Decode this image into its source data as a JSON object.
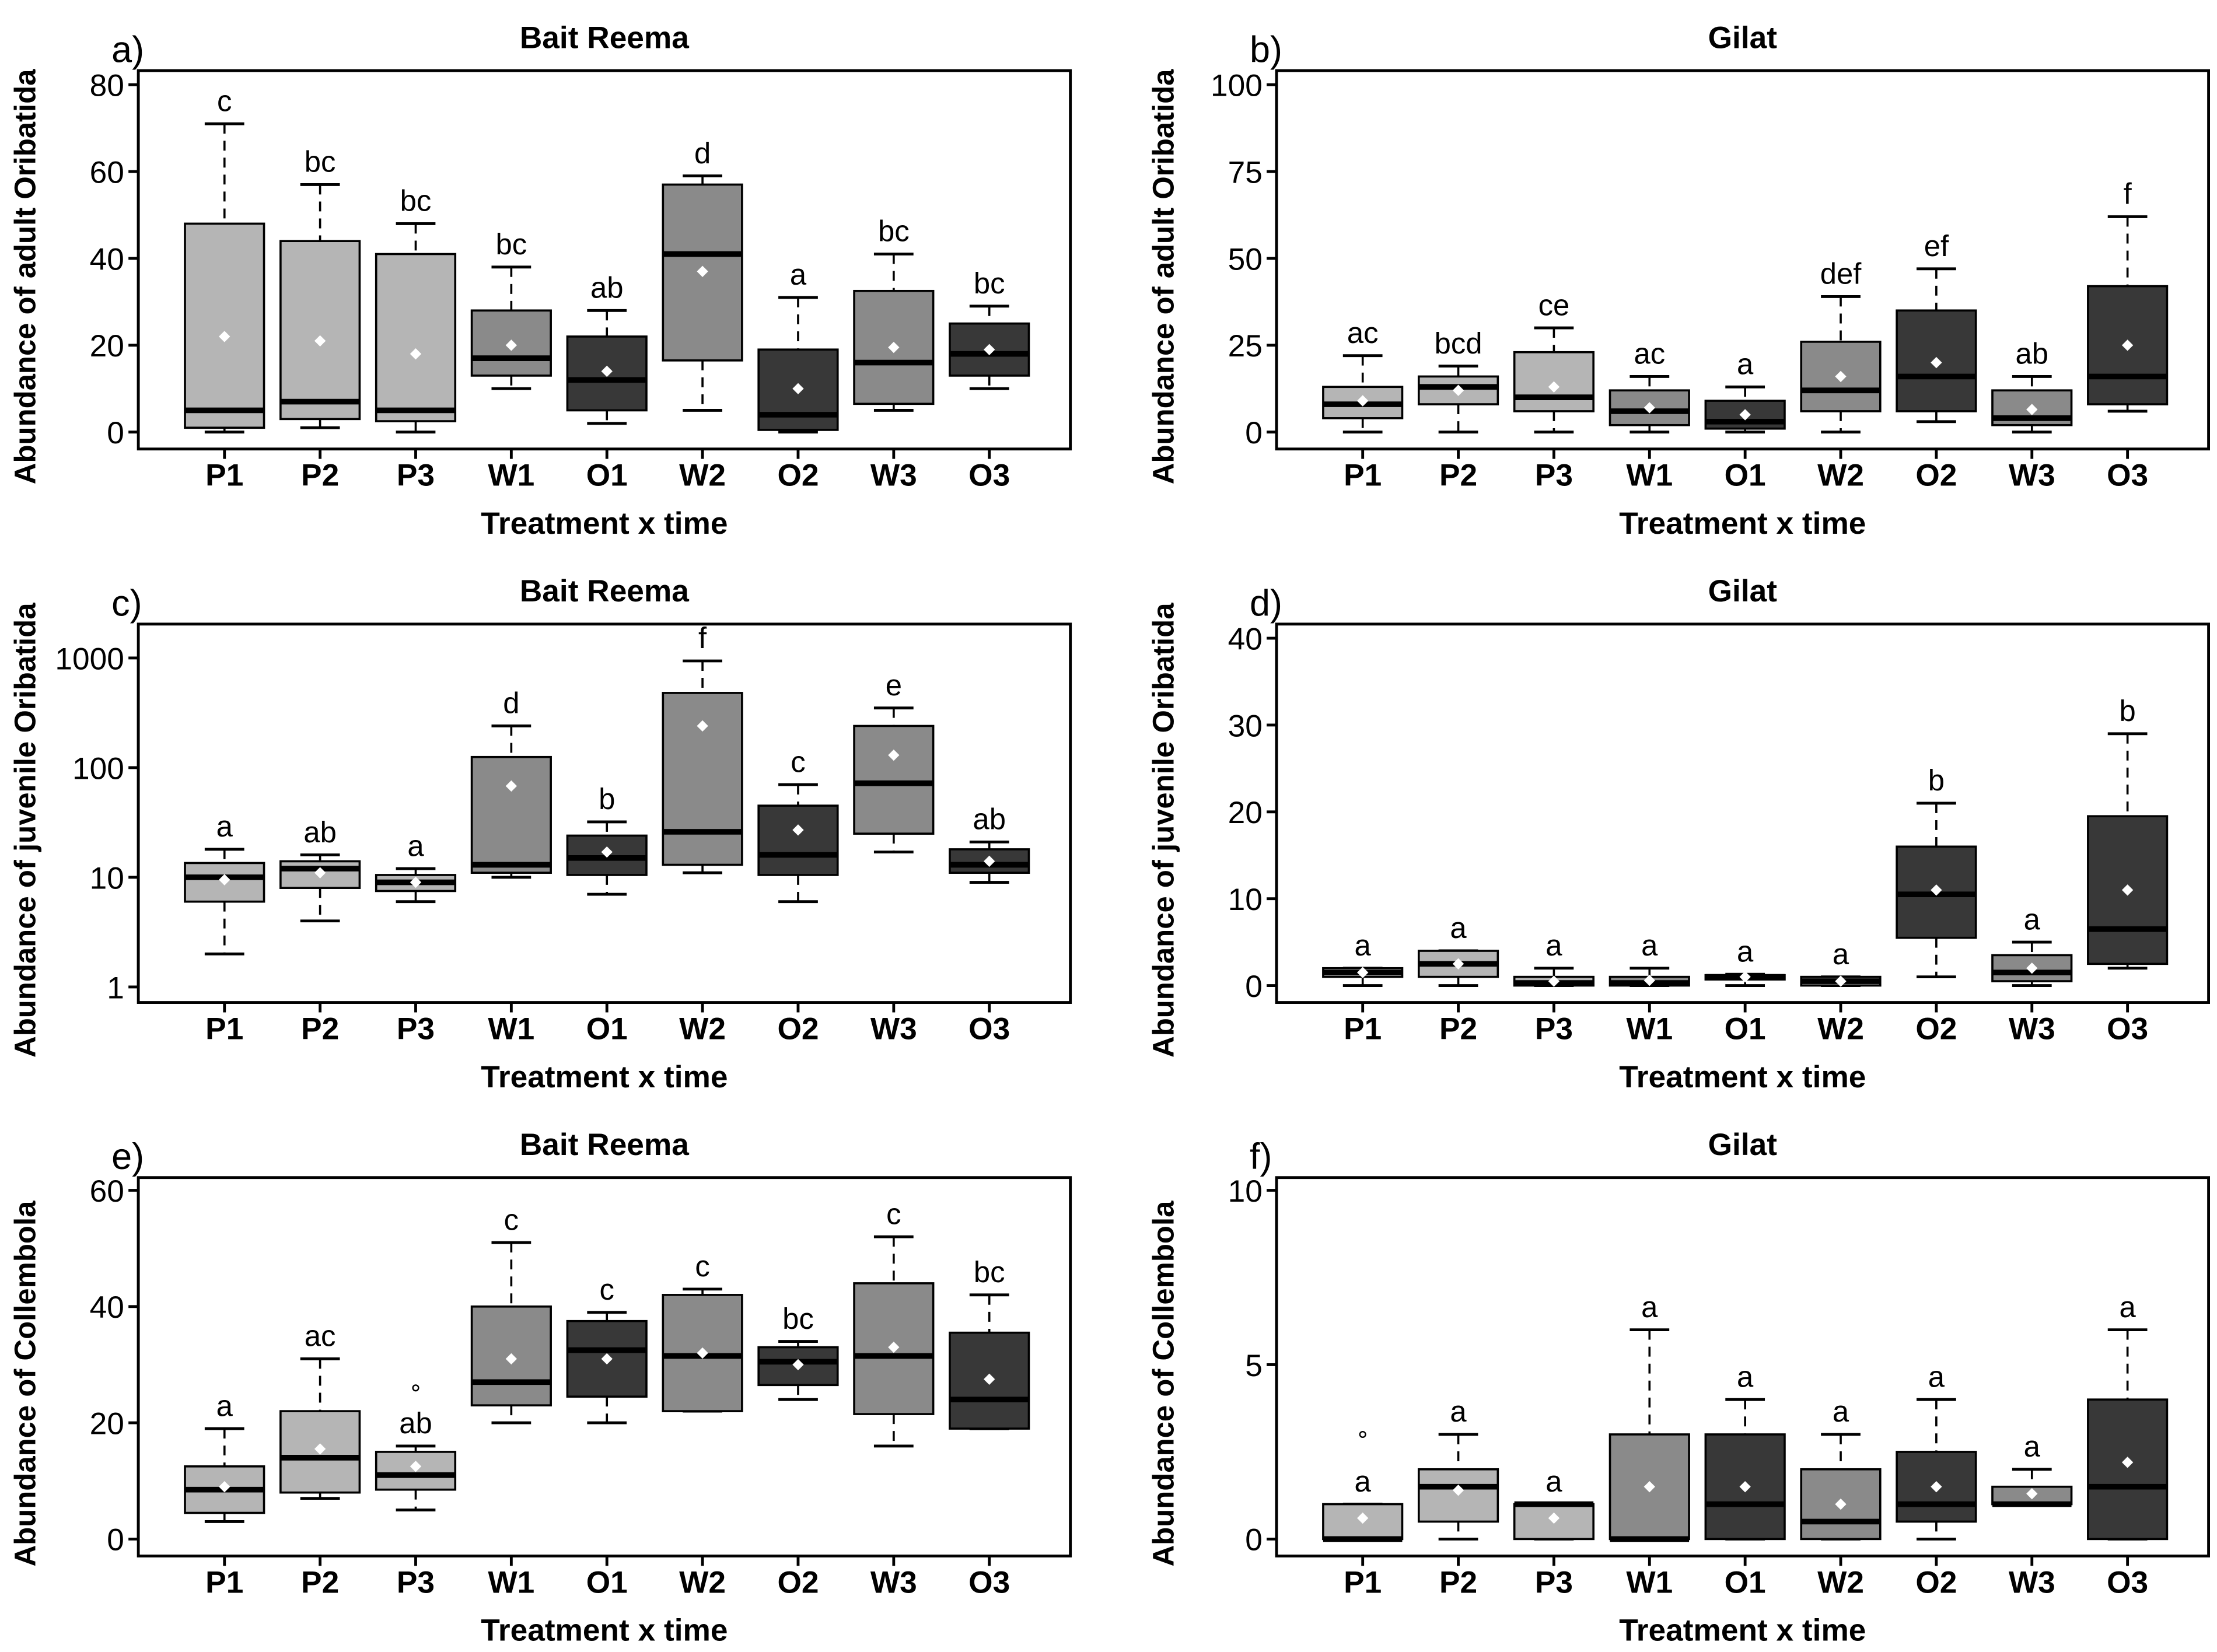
{
  "colors": {
    "P": "#b5b5b5",
    "W": "#8a8a8a",
    "O": "#383838",
    "mean_marker": "#ffffff"
  },
  "chart_data": [
    {
      "type": "box",
      "panel_label": "a)",
      "title": "Bait Reema",
      "xlabel": "Treatment x time",
      "ylabel": "Abundance of adult Oribatida",
      "scale": "linear",
      "ylim": [
        0,
        80
      ],
      "yticks": [
        0,
        20,
        40,
        60,
        80
      ],
      "categories": [
        "P1",
        "P2",
        "P3",
        "W1",
        "O1",
        "W2",
        "O2",
        "W3",
        "O3"
      ],
      "boxes": [
        {
          "lo": 0,
          "q1": 1,
          "med": 5,
          "q3": 48,
          "hi": 71,
          "mean": 22,
          "letter": "c"
        },
        {
          "lo": 1,
          "q1": 3,
          "med": 7,
          "q3": 44,
          "hi": 57,
          "mean": 21,
          "letter": "bc"
        },
        {
          "lo": 0,
          "q1": 2.5,
          "med": 5,
          "q3": 41,
          "hi": 48,
          "mean": 18,
          "letter": "bc"
        },
        {
          "lo": 10,
          "q1": 13,
          "med": 17,
          "q3": 28,
          "hi": 38,
          "mean": 20,
          "letter": "bc"
        },
        {
          "lo": 2,
          "q1": 5,
          "med": 12,
          "q3": 22,
          "hi": 28,
          "mean": 14,
          "letter": "ab"
        },
        {
          "lo": 5,
          "q1": 16.5,
          "med": 41,
          "q3": 57,
          "hi": 59,
          "mean": 37,
          "letter": "d"
        },
        {
          "lo": 0,
          "q1": 0.5,
          "med": 4,
          "q3": 19,
          "hi": 31,
          "mean": 10,
          "letter": "a"
        },
        {
          "lo": 5,
          "q1": 6.5,
          "med": 16,
          "q3": 32.5,
          "hi": 41,
          "mean": 19.5,
          "letter": "bc"
        },
        {
          "lo": 10,
          "q1": 13,
          "med": 18,
          "q3": 25,
          "hi": 29,
          "mean": 19,
          "letter": "bc"
        }
      ]
    },
    {
      "type": "box",
      "panel_label": "b)",
      "title": "Gilat",
      "xlabel": "Treatment x time",
      "ylabel": "Abundance of adult Oribatida",
      "scale": "linear",
      "ylim": [
        0,
        100
      ],
      "yticks": [
        0,
        25,
        50,
        75,
        100
      ],
      "categories": [
        "P1",
        "P2",
        "P3",
        "W1",
        "O1",
        "W2",
        "O2",
        "W3",
        "O3"
      ],
      "boxes": [
        {
          "lo": 0,
          "q1": 4,
          "med": 8,
          "q3": 13,
          "hi": 22,
          "mean": 9,
          "letter": "ac"
        },
        {
          "lo": 0,
          "q1": 8,
          "med": 13,
          "q3": 16,
          "hi": 19,
          "mean": 12,
          "letter": "bcd"
        },
        {
          "lo": 0,
          "q1": 6,
          "med": 10,
          "q3": 23,
          "hi": 30,
          "mean": 13,
          "letter": "ce"
        },
        {
          "lo": 0,
          "q1": 2,
          "med": 6,
          "q3": 12,
          "hi": 16,
          "mean": 7,
          "letter": "ac"
        },
        {
          "lo": 0,
          "q1": 1,
          "med": 3,
          "q3": 9,
          "hi": 13,
          "mean": 5,
          "letter": "a"
        },
        {
          "lo": 0,
          "q1": 6,
          "med": 12,
          "q3": 26,
          "hi": 39,
          "mean": 16,
          "letter": "def"
        },
        {
          "lo": 3,
          "q1": 6,
          "med": 16,
          "q3": 35,
          "hi": 47,
          "mean": 20,
          "letter": "ef"
        },
        {
          "lo": 0,
          "q1": 2,
          "med": 4,
          "q3": 12,
          "hi": 16,
          "mean": 6.5,
          "letter": "ab"
        },
        {
          "lo": 6,
          "q1": 8,
          "med": 16,
          "q3": 42,
          "hi": 62,
          "mean": 25,
          "letter": "f"
        }
      ]
    },
    {
      "type": "box",
      "panel_label": "c)",
      "title": "Bait Reema",
      "xlabel": "Treatment x time",
      "ylabel": "Abundance of juvenile Oribatida",
      "scale": "log",
      "ylim": [
        1,
        1000
      ],
      "yticks": [
        1,
        10,
        100,
        1000
      ],
      "categories": [
        "P1",
        "P2",
        "P3",
        "W1",
        "O1",
        "W2",
        "O2",
        "W3",
        "O3"
      ],
      "boxes": [
        {
          "lo": 2,
          "q1": 6,
          "med": 10,
          "q3": 13.5,
          "hi": 18,
          "mean": 9.5,
          "letter": "a"
        },
        {
          "lo": 4,
          "q1": 8,
          "med": 12,
          "q3": 14,
          "hi": 16,
          "mean": 11,
          "letter": "ab"
        },
        {
          "lo": 6,
          "q1": 7.5,
          "med": 9,
          "q3": 10.5,
          "hi": 12,
          "mean": 9,
          "letter": "a"
        },
        {
          "lo": 10,
          "q1": 11,
          "med": 13,
          "q3": 125,
          "hi": 240,
          "mean": 68,
          "letter": "d"
        },
        {
          "lo": 7,
          "q1": 10.5,
          "med": 15,
          "q3": 24,
          "hi": 32,
          "mean": 17,
          "letter": "b"
        },
        {
          "lo": 11,
          "q1": 13,
          "med": 26,
          "q3": 480,
          "hi": 940,
          "mean": 240,
          "letter": "f"
        },
        {
          "lo": 6,
          "q1": 10.5,
          "med": 16,
          "q3": 45,
          "hi": 70,
          "mean": 27,
          "letter": "c"
        },
        {
          "lo": 17,
          "q1": 25,
          "med": 72,
          "q3": 240,
          "hi": 350,
          "mean": 130,
          "letter": "e"
        },
        {
          "lo": 9,
          "q1": 11,
          "med": 13,
          "q3": 18,
          "hi": 21,
          "mean": 14,
          "letter": "ab"
        }
      ]
    },
    {
      "type": "box",
      "panel_label": "d)",
      "title": "Gilat",
      "xlabel": "Treatment x time",
      "ylabel": "Abundance of juvenile Oribatida",
      "scale": "linear",
      "ylim": [
        0,
        40
      ],
      "yticks": [
        0,
        10,
        20,
        30,
        40
      ],
      "categories": [
        "P1",
        "P2",
        "P3",
        "W1",
        "O1",
        "W2",
        "O2",
        "W3",
        "O3"
      ],
      "boxes": [
        {
          "lo": 0,
          "q1": 1,
          "med": 1.5,
          "q3": 2,
          "hi": 2,
          "mean": 1.5,
          "letter": "a"
        },
        {
          "lo": 0,
          "q1": 1,
          "med": 2.5,
          "q3": 4,
          "hi": 4,
          "mean": 2.5,
          "letter": "a"
        },
        {
          "lo": 0,
          "q1": 0,
          "med": 0.3,
          "q3": 1,
          "hi": 2,
          "mean": 0.5,
          "letter": "a"
        },
        {
          "lo": 0,
          "q1": 0,
          "med": 0.3,
          "q3": 1,
          "hi": 2,
          "mean": 0.6,
          "letter": "a"
        },
        {
          "lo": 0,
          "q1": 0.7,
          "med": 1,
          "q3": 1.2,
          "hi": 1.3,
          "mean": 1,
          "letter": "a"
        },
        {
          "lo": 0,
          "q1": 0,
          "med": 0.5,
          "q3": 1,
          "hi": 1,
          "mean": 0.5,
          "letter": "a"
        },
        {
          "lo": 1,
          "q1": 5.5,
          "med": 10.5,
          "q3": 16,
          "hi": 21,
          "mean": 11,
          "letter": "b"
        },
        {
          "lo": 0,
          "q1": 0.5,
          "med": 1.5,
          "q3": 3.5,
          "hi": 5,
          "mean": 2,
          "letter": "a"
        },
        {
          "lo": 2,
          "q1": 2.5,
          "med": 6.5,
          "q3": 19.5,
          "hi": 29,
          "mean": 11,
          "letter": "b"
        }
      ]
    },
    {
      "type": "box",
      "panel_label": "e)",
      "title": "Bait Reema",
      "xlabel": "Treatment x time",
      "ylabel": "Abundance of Collembola",
      "scale": "linear",
      "ylim": [
        0,
        60
      ],
      "yticks": [
        0,
        20,
        40,
        60
      ],
      "categories": [
        "P1",
        "P2",
        "P3",
        "W1",
        "O1",
        "W2",
        "O2",
        "W3",
        "O3"
      ],
      "boxes": [
        {
          "lo": 3,
          "q1": 4.5,
          "med": 8.5,
          "q3": 12.5,
          "hi": 19,
          "mean": 9,
          "letter": "a"
        },
        {
          "lo": 7,
          "q1": 8,
          "med": 14,
          "q3": 22,
          "hi": 31,
          "mean": 15.5,
          "letter": "ac"
        },
        {
          "lo": 5,
          "q1": 8.5,
          "med": 11,
          "q3": 15,
          "hi": 16,
          "mean": 12.5,
          "outliers": [
            26
          ],
          "letter": "ab"
        },
        {
          "lo": 20,
          "q1": 23,
          "med": 27,
          "q3": 40,
          "hi": 51,
          "mean": 31,
          "letter": "c"
        },
        {
          "lo": 20,
          "q1": 24.5,
          "med": 32.5,
          "q3": 37.5,
          "hi": 39,
          "mean": 31,
          "letter": "c"
        },
        {
          "lo": 22,
          "q1": 22,
          "med": 31.5,
          "q3": 42,
          "hi": 43,
          "mean": 32,
          "letter": "c"
        },
        {
          "lo": 24,
          "q1": 26.5,
          "med": 30.5,
          "q3": 33,
          "hi": 34,
          "mean": 30,
          "letter": "bc"
        },
        {
          "lo": 16,
          "q1": 21.5,
          "med": 31.5,
          "q3": 44,
          "hi": 52,
          "mean": 33,
          "letter": "c"
        },
        {
          "lo": 19,
          "q1": 19,
          "med": 24,
          "q3": 35.5,
          "hi": 42,
          "mean": 27.5,
          "letter": "bc"
        }
      ]
    },
    {
      "type": "box",
      "panel_label": "f)",
      "title": "Gilat",
      "xlabel": "Treatment x time",
      "ylabel": "Abundance of Collembola",
      "scale": "linear",
      "ylim": [
        0,
        10
      ],
      "yticks": [
        0,
        5,
        10
      ],
      "categories": [
        "P1",
        "P2",
        "P3",
        "W1",
        "O1",
        "W2",
        "O2",
        "W3",
        "O3"
      ],
      "boxes": [
        {
          "lo": 0,
          "q1": 0,
          "med": 0,
          "q3": 1,
          "hi": 1,
          "mean": 0.6,
          "outliers": [
            3
          ],
          "letter": "a"
        },
        {
          "lo": 0,
          "q1": 0.5,
          "med": 1.5,
          "q3": 2,
          "hi": 3,
          "mean": 1.4,
          "letter": "a"
        },
        {
          "lo": 0,
          "q1": 0,
          "med": 1,
          "q3": 1,
          "hi": 1,
          "mean": 0.6,
          "letter": "a"
        },
        {
          "lo": 0,
          "q1": 0,
          "med": 0,
          "q3": 3,
          "hi": 6,
          "mean": 1.5,
          "letter": "a"
        },
        {
          "lo": 0,
          "q1": 0,
          "med": 1,
          "q3": 3,
          "hi": 4,
          "mean": 1.5,
          "letter": "a"
        },
        {
          "lo": 0,
          "q1": 0,
          "med": 0.5,
          "q3": 2,
          "hi": 3,
          "mean": 1,
          "letter": "a"
        },
        {
          "lo": 0,
          "q1": 0.5,
          "med": 1,
          "q3": 2.5,
          "hi": 4,
          "mean": 1.5,
          "letter": "a"
        },
        {
          "lo": 1,
          "q1": 1,
          "med": 1,
          "q3": 1.5,
          "hi": 2,
          "mean": 1.3,
          "letter": "a"
        },
        {
          "lo": 0,
          "q1": 0,
          "med": 1.5,
          "q3": 4,
          "hi": 6,
          "mean": 2.2,
          "letter": "a"
        }
      ]
    }
  ]
}
